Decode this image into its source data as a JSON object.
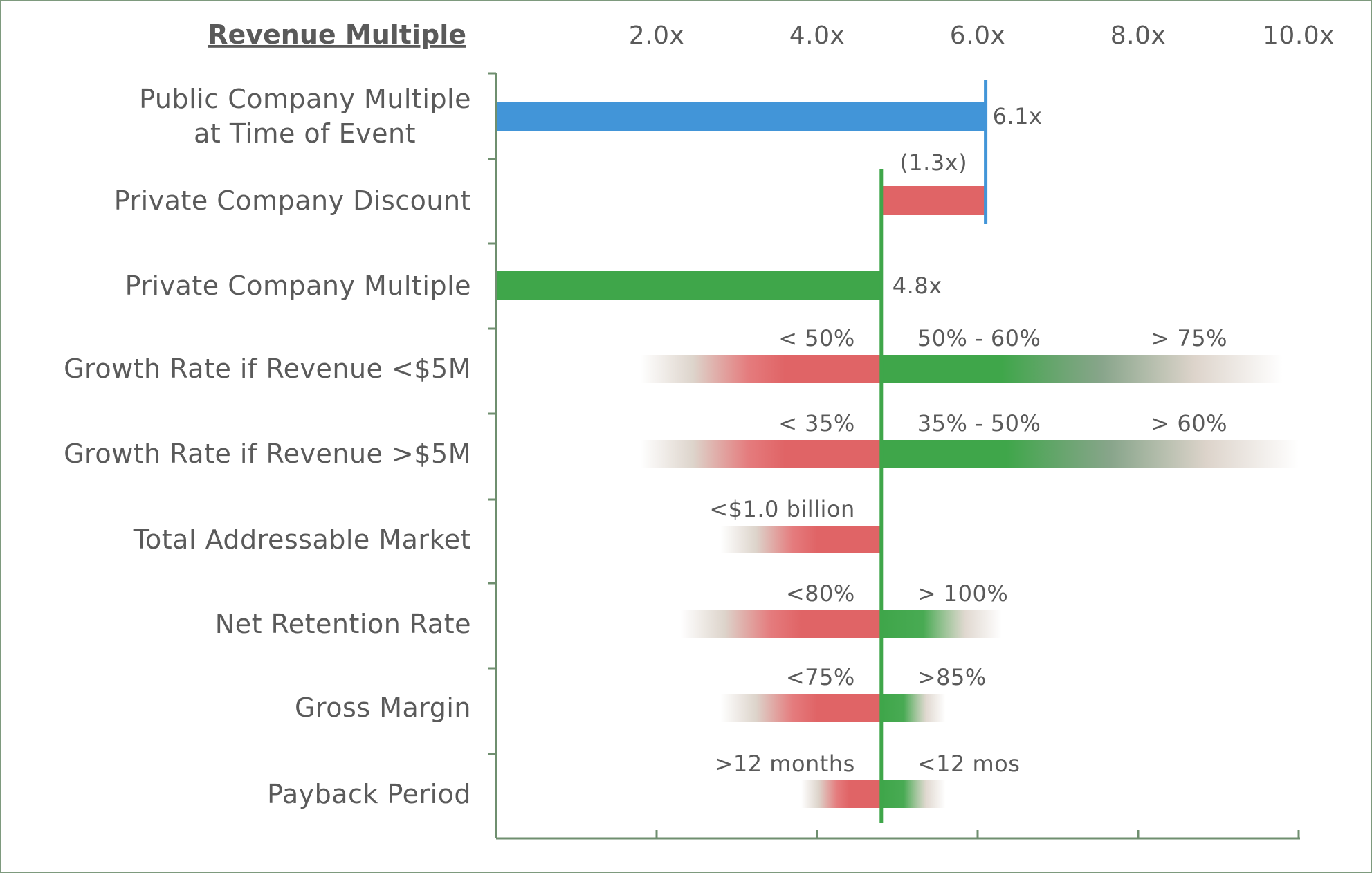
{
  "chart_data": {
    "type": "bar",
    "title": "Revenue Multiple",
    "xlim": [
      0,
      10
    ],
    "x_ticks": [
      2,
      4,
      6,
      8,
      10
    ],
    "x_tick_labels": [
      "2.0x",
      "4.0x",
      "6.0x",
      "8.0x",
      "10.0x"
    ],
    "grid": false,
    "categories": [
      "Public Company Multiple\nat Time of Event",
      "Private Company Discount",
      "Private Company Multiple",
      "Growth Rate if Revenue <$5M",
      "Growth Rate if Revenue >$5M",
      "Total Addressable Market",
      "Net Retention Rate",
      "Gross Margin",
      "Payback Period"
    ],
    "bars": [
      {
        "category_index": 0,
        "start": 0,
        "end": 6.1,
        "color": "#4295d8",
        "label": "6.1x"
      },
      {
        "category_index": 1,
        "start": 4.8,
        "end": 6.1,
        "color": "#e06466",
        "label": "(1.3x)"
      },
      {
        "category_index": 2,
        "start": 0,
        "end": 4.8,
        "color": "#3fa64a",
        "label": "4.8x"
      }
    ],
    "public_multiple": 6.1,
    "private_multiple": 4.8,
    "ranges": [
      {
        "category_index": 3,
        "negative": {
          "label": "< 50%",
          "from": 1.8,
          "to": 4.8
        },
        "positive": [
          {
            "label": "50% - 60%"
          },
          {
            "label": "> 75%"
          }
        ],
        "positive_to": 9.8
      },
      {
        "category_index": 4,
        "negative": {
          "label": "< 35%",
          "from": 1.8,
          "to": 4.8
        },
        "positive": [
          {
            "label": "35% - 50%"
          },
          {
            "label": "> 60%"
          }
        ],
        "positive_to": 10.0
      },
      {
        "category_index": 5,
        "negative": {
          "label": "<$1.0 billion",
          "from": 2.8,
          "to": 4.8
        },
        "positive": [],
        "positive_to": null
      },
      {
        "category_index": 6,
        "negative": {
          "label": "<80%",
          "from": 2.3,
          "to": 4.8
        },
        "positive": [
          {
            "label": "> 100%"
          }
        ],
        "positive_to": 6.3
      },
      {
        "category_index": 7,
        "negative": {
          "label": "<75%",
          "from": 2.8,
          "to": 4.8
        },
        "positive": [
          {
            "label": ">85%"
          }
        ],
        "positive_to": 5.6
      },
      {
        "category_index": 8,
        "negative": {
          "label": ">12 months",
          "from": 3.8,
          "to": 4.8
        },
        "positive": [
          {
            "label": "<12 mos"
          }
        ],
        "positive_to": 5.6
      }
    ],
    "colors": {
      "public": "#4295d8",
      "discount": "#e06466",
      "private": "#3fa64a",
      "fade": "#d9cfc5",
      "axis": "#6f8f6f"
    }
  }
}
